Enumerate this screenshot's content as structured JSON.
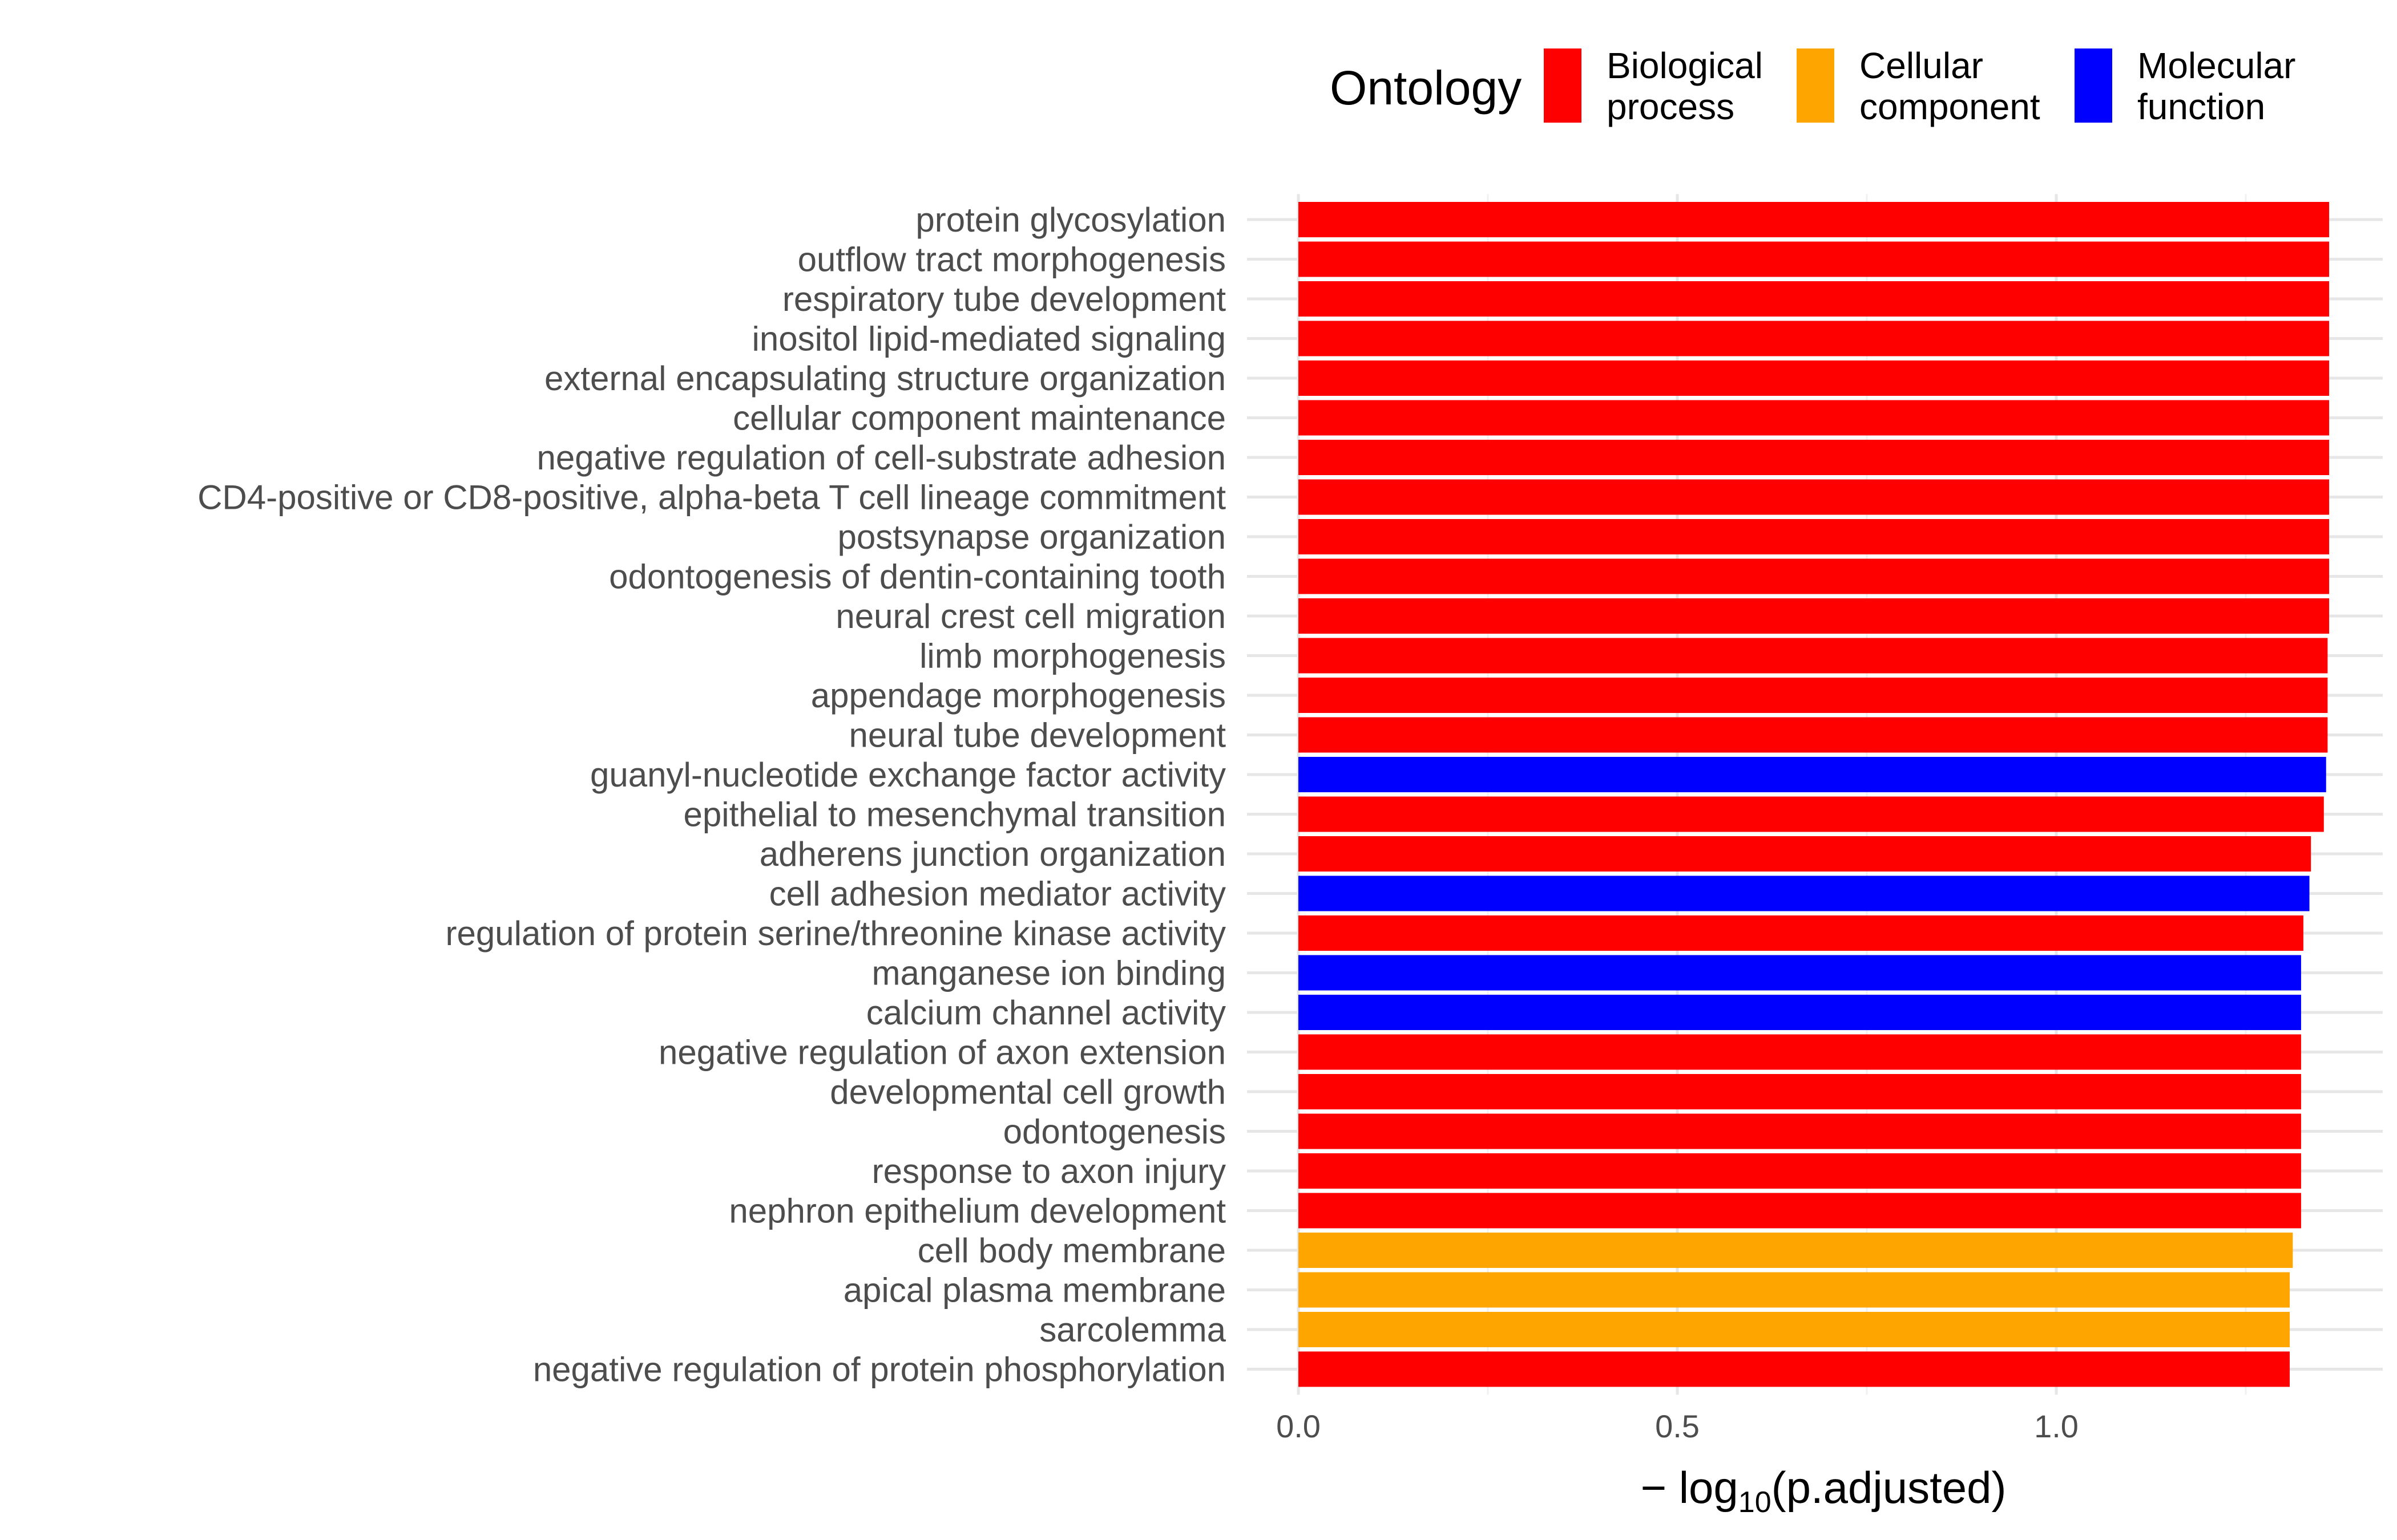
{
  "chart_data": {
    "type": "bar",
    "orientation": "horizontal",
    "xlabel_parts": {
      "prefix": "− log",
      "subscript": "10",
      "suffix": "(p.adjusted)"
    },
    "ylabel": "",
    "xlim": [
      0,
      1.42
    ],
    "xticks": [
      0.0,
      0.5,
      1.0
    ],
    "xtick_labels": [
      "0.0",
      "0.5",
      "1.0"
    ],
    "grid": true,
    "legend": {
      "title": "Ontology",
      "position": "top",
      "entries": [
        {
          "key": "BP",
          "lines": [
            "Biological",
            "process"
          ],
          "color": "#ff0000"
        },
        {
          "key": "CC",
          "lines": [
            "Cellular",
            "component"
          ],
          "color": "#ffa500"
        },
        {
          "key": "MF",
          "lines": [
            "Molecular",
            "function"
          ],
          "color": "#0000ff"
        }
      ]
    },
    "categories": [
      "protein glycosylation",
      "outflow tract morphogenesis",
      "respiratory tube development",
      "inositol lipid-mediated signaling",
      "external encapsulating structure organization",
      "cellular component maintenance",
      "negative regulation of cell-substrate adhesion",
      "CD4-positive or CD8-positive, alpha-beta T cell lineage commitment",
      "postsynapse organization",
      "odontogenesis of dentin-containing tooth",
      "neural crest cell migration",
      "limb morphogenesis",
      "appendage morphogenesis",
      "neural tube development",
      "guanyl-nucleotide exchange factor activity",
      "epithelial to mesenchymal transition",
      "adherens junction organization",
      "cell adhesion mediator activity",
      "regulation of protein serine/threonine kinase activity",
      "manganese ion binding",
      "calcium channel activity",
      "negative regulation of axon extension",
      "developmental cell growth",
      "odontogenesis",
      "response to axon injury",
      "nephron epithelium development",
      "cell body membrane",
      "apical plasma membrane",
      "sarcolemma",
      "negative regulation of protein phosphorylation"
    ],
    "values": [
      1.36,
      1.36,
      1.36,
      1.36,
      1.36,
      1.36,
      1.36,
      1.36,
      1.36,
      1.36,
      1.36,
      1.358,
      1.358,
      1.358,
      1.356,
      1.353,
      1.336,
      1.334,
      1.326,
      1.323,
      1.323,
      1.323,
      1.323,
      1.323,
      1.323,
      1.323,
      1.312,
      1.308,
      1.308,
      1.308
    ],
    "ontology": [
      "BP",
      "BP",
      "BP",
      "BP",
      "BP",
      "BP",
      "BP",
      "BP",
      "BP",
      "BP",
      "BP",
      "BP",
      "BP",
      "BP",
      "MF",
      "BP",
      "BP",
      "MF",
      "BP",
      "MF",
      "MF",
      "BP",
      "BP",
      "BP",
      "BP",
      "BP",
      "CC",
      "CC",
      "CC",
      "BP"
    ]
  }
}
